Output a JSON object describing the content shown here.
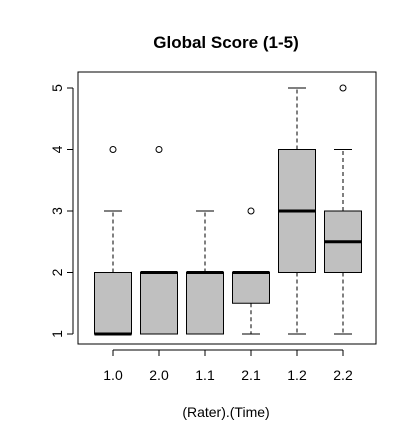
{
  "chart_data": {
    "type": "boxplot",
    "title": "Global Score (1-5)",
    "xlabel": "(Rater).(Time)",
    "ylabel": "",
    "ylim": [
      1,
      5
    ],
    "y_ticks": [
      "1",
      "2",
      "3",
      "4",
      "5"
    ],
    "categories": [
      "1.0",
      "2.0",
      "1.1",
      "2.1",
      "1.2",
      "2.2"
    ],
    "box_fill": "#c0c0c0",
    "boxes": [
      {
        "category": "1.0",
        "whisker_low": 1,
        "q1": 1,
        "median": 1,
        "q3": 2,
        "whisker_high": 3,
        "outliers": [
          4
        ]
      },
      {
        "category": "2.0",
        "whisker_low": 1,
        "q1": 1,
        "median": 2,
        "q3": 2,
        "whisker_high": 2,
        "outliers": [
          4
        ]
      },
      {
        "category": "1.1",
        "whisker_low": 1,
        "q1": 1,
        "median": 2,
        "q3": 2,
        "whisker_high": 3,
        "outliers": []
      },
      {
        "category": "2.1",
        "whisker_low": 1,
        "q1": 1.5,
        "median": 2,
        "q3": 2,
        "whisker_high": 2,
        "outliers": [
          3
        ]
      },
      {
        "category": "1.2",
        "whisker_low": 1,
        "q1": 2,
        "median": 3,
        "q3": 4,
        "whisker_high": 5,
        "outliers": []
      },
      {
        "category": "2.2",
        "whisker_low": 1,
        "q1": 2,
        "median": 2.5,
        "q3": 3,
        "whisker_high": 4,
        "outliers": [
          5
        ]
      }
    ]
  }
}
